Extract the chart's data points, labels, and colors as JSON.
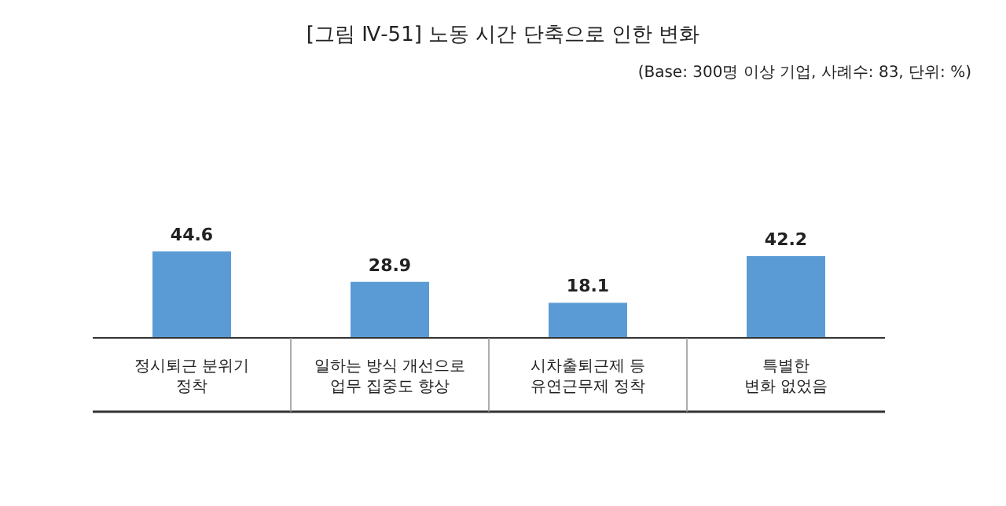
{
  "chart_data": {
    "type": "bar",
    "title": "[그림 Ⅳ-51] 노동 시간 단축으로 인한 변화",
    "subtitle": "(Base: 300명 이상 기업, 사례수: 83, 단위: %)",
    "categories": [
      "정시퇴근 분위기\n정착",
      "일하는 방식 개선으로\n업무 집중도 향상",
      "시차출퇴근제 등\n유연근무제 정착",
      "특별한\n변화 없었음"
    ],
    "values": [
      44.6,
      28.9,
      18.1,
      42.2
    ],
    "color": "#5b9bd5",
    "data_labels": true
  }
}
